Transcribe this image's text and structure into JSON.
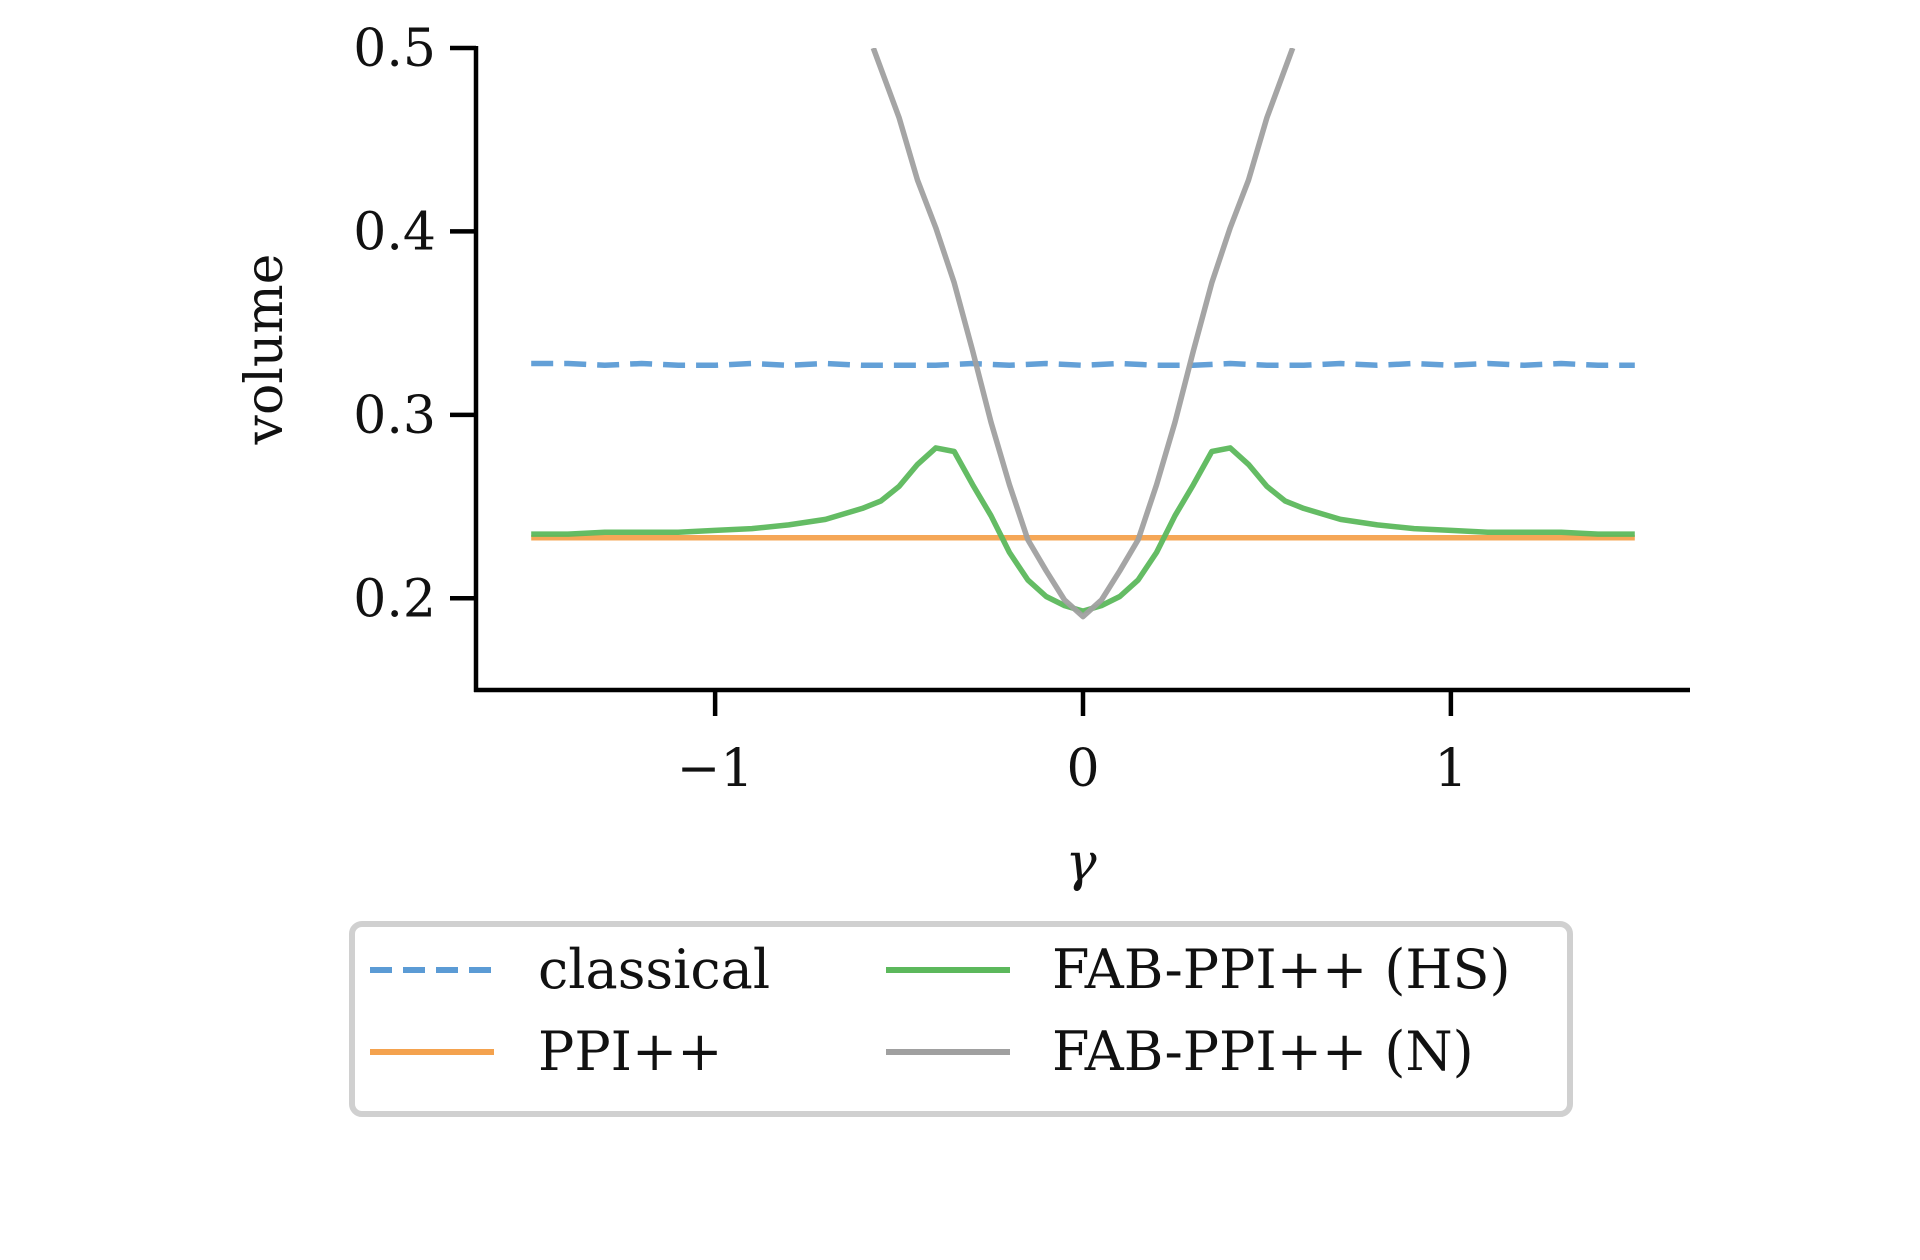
{
  "chart_data": {
    "type": "line",
    "xlabel": "γ",
    "ylabel": "volume",
    "xlim": [
      -1.65,
      1.65
    ],
    "ylim": [
      0.15,
      0.5
    ],
    "x_ticks": [
      {
        "value": -1,
        "label": "−1"
      },
      {
        "value": 0,
        "label": "0"
      },
      {
        "value": 1,
        "label": "1"
      }
    ],
    "y_ticks": [
      {
        "value": 0.2,
        "label": "0.2"
      },
      {
        "value": 0.3,
        "label": "0.3"
      },
      {
        "value": 0.4,
        "label": "0.4"
      },
      {
        "value": 0.5,
        "label": "0.5"
      }
    ],
    "grid": false,
    "legend_position": "below",
    "legend_columns": 2,
    "series": [
      {
        "name": "classical",
        "color": "#5b9bd5",
        "dash": "dashed",
        "x": [
          -1.5,
          -1.4,
          -1.3,
          -1.2,
          -1.1,
          -1.0,
          -0.9,
          -0.8,
          -0.7,
          -0.6,
          -0.5,
          -0.4,
          -0.3,
          -0.2,
          -0.1,
          0.0,
          0.1,
          0.2,
          0.3,
          0.4,
          0.5,
          0.6,
          0.7,
          0.8,
          0.9,
          1.0,
          1.1,
          1.2,
          1.3,
          1.4,
          1.5
        ],
        "y": [
          0.328,
          0.328,
          0.327,
          0.328,
          0.327,
          0.327,
          0.328,
          0.327,
          0.328,
          0.327,
          0.327,
          0.327,
          0.328,
          0.327,
          0.328,
          0.327,
          0.328,
          0.327,
          0.327,
          0.328,
          0.327,
          0.327,
          0.328,
          0.327,
          0.328,
          0.327,
          0.328,
          0.327,
          0.328,
          0.327,
          0.327
        ]
      },
      {
        "name": "PPI++",
        "color": "#f4a24e",
        "dash": "solid",
        "x": [
          -1.5,
          -1.4,
          -1.3,
          -1.2,
          -1.1,
          -1.0,
          -0.9,
          -0.8,
          -0.7,
          -0.6,
          -0.5,
          -0.4,
          -0.3,
          -0.2,
          -0.1,
          0.0,
          0.1,
          0.2,
          0.3,
          0.4,
          0.5,
          0.6,
          0.7,
          0.8,
          0.9,
          1.0,
          1.1,
          1.2,
          1.3,
          1.4,
          1.5
        ],
        "y": [
          0.233,
          0.233,
          0.233,
          0.233,
          0.233,
          0.233,
          0.233,
          0.233,
          0.233,
          0.233,
          0.233,
          0.233,
          0.233,
          0.233,
          0.233,
          0.233,
          0.233,
          0.233,
          0.233,
          0.233,
          0.233,
          0.233,
          0.233,
          0.233,
          0.233,
          0.233,
          0.233,
          0.233,
          0.233,
          0.233,
          0.233
        ]
      },
      {
        "name": "FAB-PPI++ (HS)",
        "color": "#5cb85c",
        "dash": "solid",
        "x": [
          -1.5,
          -1.4,
          -1.3,
          -1.2,
          -1.1,
          -1.0,
          -0.9,
          -0.8,
          -0.7,
          -0.6,
          -0.55,
          -0.5,
          -0.45,
          -0.4,
          -0.35,
          -0.3,
          -0.25,
          -0.2,
          -0.15,
          -0.1,
          -0.05,
          0.0,
          0.05,
          0.1,
          0.15,
          0.2,
          0.25,
          0.3,
          0.35,
          0.4,
          0.45,
          0.5,
          0.55,
          0.6,
          0.7,
          0.8,
          0.9,
          1.0,
          1.1,
          1.2,
          1.3,
          1.4,
          1.5
        ],
        "y": [
          0.235,
          0.235,
          0.236,
          0.236,
          0.236,
          0.237,
          0.238,
          0.24,
          0.243,
          0.249,
          0.253,
          0.261,
          0.273,
          0.282,
          0.28,
          0.262,
          0.245,
          0.225,
          0.21,
          0.201,
          0.196,
          0.193,
          0.196,
          0.201,
          0.21,
          0.225,
          0.245,
          0.262,
          0.28,
          0.282,
          0.273,
          0.261,
          0.253,
          0.249,
          0.243,
          0.24,
          0.238,
          0.237,
          0.236,
          0.236,
          0.236,
          0.235,
          0.235
        ]
      },
      {
        "name": "FAB-PPI++ (N)",
        "color": "#a0a0a0",
        "dash": "solid",
        "x": [
          -0.57,
          -0.5,
          -0.45,
          -0.4,
          -0.35,
          -0.3,
          -0.25,
          -0.2,
          -0.15,
          -0.1,
          -0.05,
          0.0,
          0.05,
          0.1,
          0.15,
          0.2,
          0.25,
          0.3,
          0.35,
          0.4,
          0.45,
          0.5,
          0.57
        ],
        "y": [
          0.5,
          0.462,
          0.428,
          0.402,
          0.372,
          0.335,
          0.296,
          0.262,
          0.232,
          0.215,
          0.199,
          0.19,
          0.199,
          0.215,
          0.232,
          0.262,
          0.296,
          0.335,
          0.372,
          0.402,
          0.428,
          0.462,
          0.5
        ]
      }
    ]
  }
}
